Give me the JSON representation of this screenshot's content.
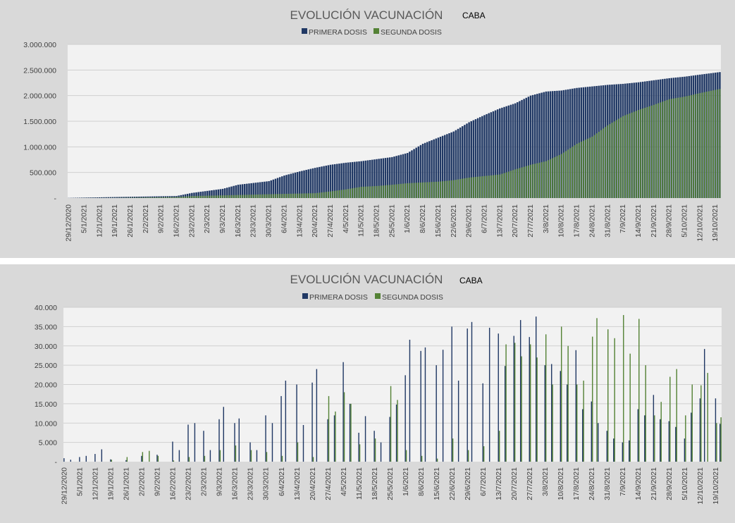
{
  "charts": [
    {
      "title": "EVOLUCIÓN VACUNACIÓN",
      "region": "CABA",
      "legend": [
        "PRIMERA DOSIS",
        "SEGUNDA DOSIS"
      ],
      "yticks": [
        "3.000.000",
        "2.500.000",
        "2.000.000",
        "1.500.000",
        "1.000.000",
        "500.000",
        "-"
      ],
      "xticks": [
        "29/12/2020",
        "5/1/2021",
        "12/1/2021",
        "19/1/2021",
        "26/1/2021",
        "2/2/2021",
        "9/2/2021",
        "16/2/2021",
        "23/2/2021",
        "2/3/2021",
        "9/3/2021",
        "16/3/2021",
        "23/3/2021",
        "30/3/2021",
        "6/4/2021",
        "13/4/2021",
        "20/4/2021",
        "27/4/2021",
        "4/5/2021",
        "11/5/2021",
        "18/5/2021",
        "25/5/2021",
        "1/6/2021",
        "8/6/2021",
        "15/6/2021",
        "22/6/2021",
        "29/6/2021",
        "6/7/2021",
        "13/7/2021",
        "20/7/2021",
        "27/7/2021",
        "3/8/2021",
        "10/8/2021",
        "17/8/2021",
        "24/8/2021",
        "31/8/2021",
        "7/9/2021",
        "14/9/2021",
        "21/9/2021",
        "28/9/2021",
        "5/10/2021",
        "12/10/2021",
        "19/10/2021"
      ]
    },
    {
      "title": "EVOLUCIÓN VACUNACIÓN",
      "region": "CABA",
      "legend": [
        "PRIMERA DOSIS",
        "SEGUNDA DOSIS"
      ],
      "yticks": [
        "40.000",
        "35.000",
        "30.000",
        "25.000",
        "20.000",
        "15.000",
        "10.000",
        "5.000",
        "-"
      ],
      "xticks": [
        "29/12/2020",
        "5/1/2021",
        "12/1/2021",
        "19/1/2021",
        "26/1/2021",
        "2/2/2021",
        "9/2/2021",
        "16/2/2021",
        "23/2/2021",
        "2/3/2021",
        "9/3/2021",
        "16/3/2021",
        "23/3/2021",
        "30/3/2021",
        "6/4/2021",
        "13/4/2021",
        "20/4/2021",
        "27/4/2021",
        "4/5/2021",
        "11/5/2021",
        "18/5/2021",
        "25/5/2021",
        "1/6/2021",
        "8/6/2021",
        "15/6/2021",
        "22/6/2021",
        "29/6/2021",
        "6/7/2021",
        "13/7/2021",
        "20/7/2021",
        "27/7/2021",
        "3/8/2021",
        "10/8/2021",
        "17/8/2021",
        "24/8/2021",
        "31/8/2021",
        "7/9/2021",
        "14/9/2021",
        "21/9/2021",
        "28/9/2021",
        "5/10/2021",
        "12/10/2021",
        "19/10/2021"
      ]
    }
  ],
  "colors": {
    "primera": "#203864",
    "segunda": "#548235",
    "plot_bg": "#f2f2f2",
    "panel_bg": "#d9d9d9",
    "grid": "#d0d0d0"
  },
  "chart_data": [
    {
      "type": "bar",
      "title": "EVOLUCIÓN VACUNACIÓN",
      "subtitle": "CABA",
      "x_start": "29/12/2020",
      "x_end": "21/10/2021",
      "ylim": [
        0,
        3000000
      ],
      "grid": true,
      "legend_position": "top",
      "series": [
        {
          "name": "PRIMERA DOSIS",
          "cumulative": true,
          "points": [
            [
              "29/12/2020",
              3000
            ],
            [
              "19/1/2021",
              20000
            ],
            [
              "16/2/2021",
              40000
            ],
            [
              "23/2/2021",
              100000
            ],
            [
              "2/3/2021",
              140000
            ],
            [
              "9/3/2021",
              180000
            ],
            [
              "16/3/2021",
              260000
            ],
            [
              "30/3/2021",
              330000
            ],
            [
              "6/4/2021",
              440000
            ],
            [
              "13/4/2021",
              520000
            ],
            [
              "20/4/2021",
              590000
            ],
            [
              "27/4/2021",
              650000
            ],
            [
              "4/5/2021",
              690000
            ],
            [
              "11/5/2021",
              720000
            ],
            [
              "18/5/2021",
              760000
            ],
            [
              "25/5/2021",
              800000
            ],
            [
              "1/6/2021",
              880000
            ],
            [
              "8/6/2021",
              1060000
            ],
            [
              "15/6/2021",
              1180000
            ],
            [
              "22/6/2021",
              1300000
            ],
            [
              "29/6/2021",
              1480000
            ],
            [
              "6/7/2021",
              1620000
            ],
            [
              "13/7/2021",
              1750000
            ],
            [
              "20/7/2021",
              1850000
            ],
            [
              "27/7/2021",
              2000000
            ],
            [
              "3/8/2021",
              2080000
            ],
            [
              "10/8/2021",
              2100000
            ],
            [
              "17/8/2021",
              2150000
            ],
            [
              "24/8/2021",
              2180000
            ],
            [
              "31/8/2021",
              2210000
            ],
            [
              "7/9/2021",
              2230000
            ],
            [
              "14/9/2021",
              2260000
            ],
            [
              "21/9/2021",
              2300000
            ],
            [
              "28/9/2021",
              2340000
            ],
            [
              "5/10/2021",
              2370000
            ],
            [
              "12/10/2021",
              2410000
            ],
            [
              "21/10/2021",
              2460000
            ]
          ]
        },
        {
          "name": "SEGUNDA DOSIS",
          "cumulative": true,
          "points": [
            [
              "29/12/2020",
              0
            ],
            [
              "19/1/2021",
              3000
            ],
            [
              "16/2/2021",
              20000
            ],
            [
              "23/2/2021",
              40000
            ],
            [
              "16/3/2021",
              60000
            ],
            [
              "30/3/2021",
              75000
            ],
            [
              "20/4/2021",
              95000
            ],
            [
              "27/4/2021",
              130000
            ],
            [
              "4/5/2021",
              170000
            ],
            [
              "11/5/2021",
              220000
            ],
            [
              "18/5/2021",
              235000
            ],
            [
              "25/5/2021",
              260000
            ],
            [
              "1/6/2021",
              290000
            ],
            [
              "15/6/2021",
              320000
            ],
            [
              "22/6/2021",
              350000
            ],
            [
              "29/6/2021",
              400000
            ],
            [
              "6/7/2021",
              430000
            ],
            [
              "13/7/2021",
              460000
            ],
            [
              "20/7/2021",
              560000
            ],
            [
              "27/7/2021",
              650000
            ],
            [
              "3/8/2021",
              720000
            ],
            [
              "10/8/2021",
              860000
            ],
            [
              "17/8/2021",
              1060000
            ],
            [
              "24/8/2021",
              1200000
            ],
            [
              "31/8/2021",
              1420000
            ],
            [
              "7/9/2021",
              1600000
            ],
            [
              "14/9/2021",
              1720000
            ],
            [
              "21/9/2021",
              1820000
            ],
            [
              "28/9/2021",
              1930000
            ],
            [
              "5/10/2021",
              1980000
            ],
            [
              "12/10/2021",
              2050000
            ],
            [
              "21/10/2021",
              2130000
            ]
          ]
        }
      ]
    },
    {
      "type": "bar",
      "title": "EVOLUCIÓN VACUNACIÓN",
      "subtitle": "CABA",
      "x_start": "29/12/2020",
      "x_end": "21/10/2021",
      "ylim": [
        0,
        40000
      ],
      "grid": true,
      "legend_position": "top",
      "series": [
        {
          "name": "PRIMERA DOSIS",
          "points": [
            [
              "29/12/2020",
              900
            ],
            [
              "1/1/2021",
              500
            ],
            [
              "5/1/2021",
              1200
            ],
            [
              "8/1/2021",
              1500
            ],
            [
              "12/1/2021",
              2000
            ],
            [
              "15/1/2021",
              3200
            ],
            [
              "19/1/2021",
              600
            ],
            [
              "26/1/2021",
              400
            ],
            [
              "2/2/2021",
              1500
            ],
            [
              "9/2/2021",
              1800
            ],
            [
              "16/2/2021",
              5200
            ],
            [
              "19/2/2021",
              3000
            ],
            [
              "23/2/2021",
              9600
            ],
            [
              "26/2/2021",
              10000
            ],
            [
              "2/3/2021",
              8000
            ],
            [
              "5/3/2021",
              3000
            ],
            [
              "9/3/2021",
              11000
            ],
            [
              "11/3/2021",
              14200
            ],
            [
              "16/3/2021",
              10000
            ],
            [
              "18/3/2021",
              11200
            ],
            [
              "23/3/2021",
              5000
            ],
            [
              "26/3/2021",
              3000
            ],
            [
              "30/3/2021",
              12000
            ],
            [
              "2/4/2021",
              10000
            ],
            [
              "6/4/2021",
              17000
            ],
            [
              "8/4/2021",
              21000
            ],
            [
              "13/4/2021",
              20000
            ],
            [
              "16/4/2021",
              9500
            ],
            [
              "20/4/2021",
              20500
            ],
            [
              "22/4/2021",
              24000
            ],
            [
              "27/4/2021",
              11000
            ],
            [
              "30/4/2021",
              12000
            ],
            [
              "4/5/2021",
              25800
            ],
            [
              "7/5/2021",
              15000
            ],
            [
              "11/5/2021",
              7500
            ],
            [
              "14/5/2021",
              11800
            ],
            [
              "18/5/2021",
              8000
            ],
            [
              "21/5/2021",
              5000
            ],
            [
              "25/5/2021",
              11600
            ],
            [
              "28/5/2021",
              14800
            ],
            [
              "1/6/2021",
              22400
            ],
            [
              "3/6/2021",
              31600
            ],
            [
              "8/6/2021",
              28700
            ],
            [
              "10/6/2021",
              29600
            ],
            [
              "15/6/2021",
              25000
            ],
            [
              "18/6/2021",
              29000
            ],
            [
              "22/6/2021",
              35000
            ],
            [
              "25/6/2021",
              21000
            ],
            [
              "29/6/2021",
              34500
            ],
            [
              "1/7/2021",
              36200
            ],
            [
              "6/7/2021",
              20300
            ],
            [
              "9/7/2021",
              34700
            ],
            [
              "13/7/2021",
              33200
            ],
            [
              "16/7/2021",
              24800
            ],
            [
              "20/7/2021",
              32600
            ],
            [
              "23/7/2021",
              36700
            ],
            [
              "27/7/2021",
              32300
            ],
            [
              "30/7/2021",
              37600
            ],
            [
              "3/8/2021",
              25000
            ],
            [
              "6/8/2021",
              25300
            ],
            [
              "10/8/2021",
              23500
            ],
            [
              "13/8/2021",
              20000
            ],
            [
              "17/8/2021",
              28900
            ],
            [
              "20/8/2021",
              13600
            ],
            [
              "24/8/2021",
              15600
            ],
            [
              "27/8/2021",
              10000
            ],
            [
              "31/8/2021",
              8000
            ],
            [
              "3/9/2021",
              6000
            ],
            [
              "7/9/2021",
              5000
            ],
            [
              "10/9/2021",
              5500
            ],
            [
              "14/9/2021",
              13600
            ],
            [
              "17/9/2021",
              12000
            ],
            [
              "21/9/2021",
              17300
            ],
            [
              "24/9/2021",
              11000
            ],
            [
              "28/9/2021",
              10500
            ],
            [
              "1/10/2021",
              9000
            ],
            [
              "5/10/2021",
              6000
            ],
            [
              "8/10/2021",
              12700
            ],
            [
              "12/10/2021",
              16400
            ],
            [
              "14/10/2021",
              29200
            ],
            [
              "19/10/2021",
              16400
            ],
            [
              "21/10/2021",
              9800
            ]
          ]
        },
        {
          "name": "SEGUNDA DOSIS",
          "points": [
            [
              "29/12/2020",
              0
            ],
            [
              "19/1/2021",
              500
            ],
            [
              "26/1/2021",
              1200
            ],
            [
              "2/2/2021",
              2500
            ],
            [
              "5/2/2021",
              2800
            ],
            [
              "9/2/2021",
              1500
            ],
            [
              "16/2/2021",
              300
            ],
            [
              "23/2/2021",
              1200
            ],
            [
              "2/3/2021",
              1500
            ],
            [
              "9/3/2021",
              3000
            ],
            [
              "16/3/2021",
              4200
            ],
            [
              "23/3/2021",
              3000
            ],
            [
              "30/3/2021",
              2500
            ],
            [
              "6/4/2021",
              1500
            ],
            [
              "13/4/2021",
              5000
            ],
            [
              "20/4/2021",
              1200
            ],
            [
              "27/4/2021",
              17000
            ],
            [
              "30/4/2021",
              13000
            ],
            [
              "4/5/2021",
              18000
            ],
            [
              "7/5/2021",
              15000
            ],
            [
              "11/5/2021",
              4500
            ],
            [
              "18/5/2021",
              6000
            ],
            [
              "25/5/2021",
              19600
            ],
            [
              "28/5/2021",
              16000
            ],
            [
              "1/6/2021",
              3000
            ],
            [
              "8/6/2021",
              1500
            ],
            [
              "15/6/2021",
              800
            ],
            [
              "22/6/2021",
              6000
            ],
            [
              "29/6/2021",
              3000
            ],
            [
              "6/7/2021",
              4000
            ],
            [
              "13/7/2021",
              8000
            ],
            [
              "16/7/2021",
              30400
            ],
            [
              "20/7/2021",
              30800
            ],
            [
              "23/7/2021",
              27300
            ],
            [
              "27/7/2021",
              30400
            ],
            [
              "30/7/2021",
              27000
            ],
            [
              "3/8/2021",
              33000
            ],
            [
              "6/8/2021",
              20000
            ],
            [
              "10/8/2021",
              35000
            ],
            [
              "13/8/2021",
              30000
            ],
            [
              "17/8/2021",
              20000
            ],
            [
              "20/8/2021",
              21000
            ],
            [
              "24/8/2021",
              32400
            ],
            [
              "26/8/2021",
              37200
            ],
            [
              "31/8/2021",
              34300
            ],
            [
              "3/9/2021",
              32000
            ],
            [
              "7/9/2021",
              38000
            ],
            [
              "10/9/2021",
              28000
            ],
            [
              "14/9/2021",
              37000
            ],
            [
              "17/9/2021",
              25000
            ],
            [
              "21/9/2021",
              12000
            ],
            [
              "24/9/2021",
              15500
            ],
            [
              "28/9/2021",
              22000
            ],
            [
              "1/10/2021",
              24000
            ],
            [
              "5/10/2021",
              12000
            ],
            [
              "8/10/2021",
              20000
            ],
            [
              "12/10/2021",
              19800
            ],
            [
              "15/10/2021",
              23000
            ],
            [
              "19/10/2021",
              10000
            ],
            [
              "21/10/2021",
              11500
            ]
          ]
        }
      ]
    }
  ]
}
